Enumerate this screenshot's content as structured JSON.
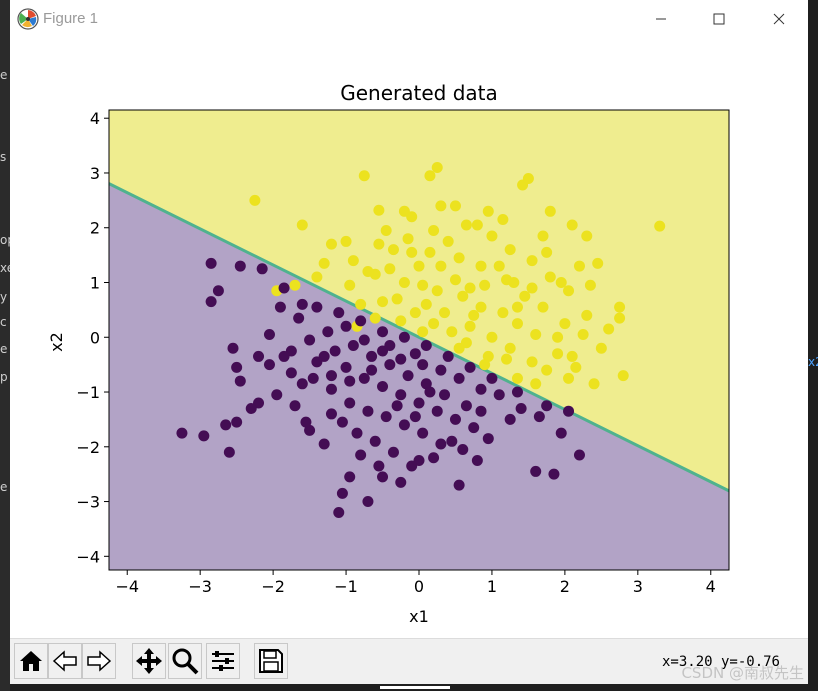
{
  "window": {
    "title": "Figure 1",
    "controls": [
      "minimize",
      "maximize",
      "close"
    ]
  },
  "chart_data": {
    "type": "scatter",
    "title": "Generated data",
    "xlabel": "x1",
    "ylabel": "x2",
    "xlim": [
      -4.25,
      4.25
    ],
    "ylim": [
      -4.25,
      4.15
    ],
    "xticks": [
      "−4",
      "−3",
      "−2",
      "−1",
      "0",
      "1",
      "2",
      "3",
      "4"
    ],
    "yticks": [
      "4",
      "3",
      "2",
      "1",
      "0",
      "−1",
      "−2",
      "−3",
      "−4"
    ],
    "xtick_values": [
      -4,
      -3,
      -2,
      -1,
      0,
      1,
      2,
      3,
      4
    ],
    "ytick_values": [
      4,
      3,
      2,
      1,
      0,
      -1,
      -2,
      -3,
      -4
    ],
    "decision_boundary": {
      "slope": -0.66,
      "intercept": 0.0
    },
    "regions": {
      "upper_color": "#efed8f",
      "lower_color": "#b2a3c6",
      "boundary_color": "#4fb28e"
    },
    "series": [
      {
        "class": 1,
        "color": "#ece21f",
        "points": [
          [
            -2.25,
            2.5
          ],
          [
            -1.6,
            2.05
          ],
          [
            -0.75,
            2.95
          ],
          [
            -0.55,
            2.32
          ],
          [
            0.15,
            2.95
          ],
          [
            0.25,
            3.1
          ],
          [
            1.42,
            2.78
          ],
          [
            1.5,
            2.9
          ],
          [
            1.8,
            2.3
          ],
          [
            3.3,
            2.03
          ],
          [
            2.1,
            2.05
          ],
          [
            2.3,
            1.85
          ],
          [
            0.8,
            2.05
          ],
          [
            -0.1,
            2.2
          ],
          [
            -0.35,
            1.6
          ],
          [
            -1.2,
            1.7
          ],
          [
            -0.9,
            1.4
          ],
          [
            -0.6,
            1.15
          ],
          [
            -0.2,
            1.0
          ],
          [
            0.05,
            0.95
          ],
          [
            0.3,
            1.3
          ],
          [
            0.5,
            1.05
          ],
          [
            0.6,
            0.75
          ],
          [
            0.85,
            0.55
          ],
          [
            1.15,
            0.45
          ],
          [
            1.35,
            0.25
          ],
          [
            1.6,
            0.05
          ],
          [
            1.9,
            -0.3
          ],
          [
            2.15,
            -0.55
          ],
          [
            2.5,
            -0.2
          ],
          [
            2.75,
            0.55
          ],
          [
            2.8,
            -0.7
          ],
          [
            2.3,
            0.4
          ],
          [
            2.05,
            0.85
          ],
          [
            1.8,
            1.1
          ],
          [
            1.55,
            1.4
          ],
          [
            1.25,
            1.6
          ],
          [
            1.0,
            1.85
          ],
          [
            0.65,
            2.05
          ],
          [
            0.4,
            1.75
          ],
          [
            0.15,
            1.55
          ],
          [
            -0.15,
            1.8
          ],
          [
            -0.45,
            1.95
          ],
          [
            -0.7,
            1.2
          ],
          [
            -0.95,
            0.95
          ],
          [
            -1.4,
            1.1
          ],
          [
            -1.7,
            0.95
          ],
          [
            -1.95,
            0.85
          ],
          [
            -0.3,
            0.7
          ],
          [
            0.1,
            0.6
          ],
          [
            0.35,
            0.45
          ],
          [
            0.7,
            0.2
          ],
          [
            1.0,
            0.0
          ],
          [
            1.25,
            -0.2
          ],
          [
            1.55,
            -0.45
          ],
          [
            1.75,
            -0.6
          ],
          [
            2.05,
            -0.75
          ],
          [
            2.4,
            -0.85
          ],
          [
            1.6,
            -0.85
          ],
          [
            1.35,
            -0.75
          ],
          [
            0.95,
            -0.35
          ],
          [
            0.65,
            -0.1
          ],
          [
            0.45,
            0.1
          ],
          [
            0.2,
            0.25
          ],
          [
            -0.05,
            0.45
          ],
          [
            -0.25,
            0.3
          ],
          [
            -0.5,
            0.65
          ],
          [
            -0.8,
            0.6
          ],
          [
            0.9,
            0.95
          ],
          [
            1.2,
            1.05
          ],
          [
            1.45,
            0.75
          ],
          [
            1.7,
            0.55
          ],
          [
            2.0,
            0.25
          ],
          [
            2.25,
            0.05
          ],
          [
            2.6,
            0.15
          ],
          [
            0.55,
            1.45
          ],
          [
            0.85,
            1.3
          ],
          [
            1.1,
            1.3
          ],
          [
            1.3,
            1.0
          ],
          [
            1.75,
            1.55
          ],
          [
            2.2,
            1.3
          ],
          [
            0.0,
            1.3
          ],
          [
            -0.4,
            1.25
          ],
          [
            -1.0,
            1.75
          ],
          [
            -0.2,
            2.3
          ],
          [
            0.3,
            2.4
          ],
          [
            0.95,
            2.3
          ],
          [
            1.15,
            2.15
          ],
          [
            1.7,
            1.85
          ],
          [
            2.45,
            1.35
          ],
          [
            -0.85,
            0.2
          ],
          [
            -0.6,
            0.35
          ],
          [
            0.05,
            0.1
          ],
          [
            0.55,
            -0.2
          ],
          [
            0.9,
            -0.5
          ],
          [
            1.2,
            -0.4
          ],
          [
            1.9,
            0.0
          ],
          [
            2.1,
            -0.35
          ],
          [
            0.75,
            0.4
          ],
          [
            1.35,
            0.55
          ],
          [
            1.55,
            0.9
          ],
          [
            2.35,
            0.95
          ],
          [
            2.75,
            0.35
          ],
          [
            1.95,
            1.0
          ],
          [
            0.25,
            0.85
          ],
          [
            0.7,
            0.9
          ],
          [
            -0.1,
            1.55
          ],
          [
            0.2,
            1.95
          ],
          [
            0.5,
            2.4
          ],
          [
            -0.55,
            1.7
          ],
          [
            -1.3,
            1.35
          ]
        ]
      },
      {
        "class": 0,
        "color": "#440d54",
        "points": [
          [
            -2.85,
            1.35
          ],
          [
            -2.85,
            0.65
          ],
          [
            -2.75,
            0.85
          ],
          [
            -2.45,
            1.3
          ],
          [
            -2.15,
            1.25
          ],
          [
            -1.85,
            0.9
          ],
          [
            -1.6,
            0.6
          ],
          [
            -2.05,
            0.05
          ],
          [
            -2.2,
            -0.35
          ],
          [
            -2.55,
            -0.2
          ],
          [
            -2.5,
            -0.55
          ],
          [
            -2.45,
            -0.8
          ],
          [
            -2.2,
            -1.2
          ],
          [
            -2.3,
            -1.3
          ],
          [
            -2.5,
            -1.55
          ],
          [
            -2.65,
            -1.6
          ],
          [
            -2.6,
            -2.1
          ],
          [
            -2.95,
            -1.8
          ],
          [
            -3.25,
            -1.75
          ],
          [
            -2.05,
            -0.5
          ],
          [
            -1.75,
            -0.65
          ],
          [
            -1.45,
            -0.75
          ],
          [
            -1.2,
            -0.95
          ],
          [
            -0.95,
            -1.2
          ],
          [
            -0.7,
            -1.35
          ],
          [
            -0.45,
            -1.45
          ],
          [
            -0.2,
            -1.6
          ],
          [
            0.05,
            -1.75
          ],
          [
            0.3,
            -1.95
          ],
          [
            0.6,
            -2.05
          ],
          [
            0.8,
            -2.25
          ],
          [
            0.55,
            -2.7
          ],
          [
            0.0,
            -2.25
          ],
          [
            -0.5,
            -2.55
          ],
          [
            -0.95,
            -2.55
          ],
          [
            -1.05,
            -2.85
          ],
          [
            -0.7,
            -3.0
          ],
          [
            -1.1,
            -3.2
          ],
          [
            -1.3,
            -1.95
          ],
          [
            -1.5,
            -1.7
          ],
          [
            -1.7,
            -1.25
          ],
          [
            -1.95,
            -1.05
          ],
          [
            -1.75,
            -0.25
          ],
          [
            -1.5,
            -0.05
          ],
          [
            -1.25,
            0.1
          ],
          [
            -1.0,
            0.2
          ],
          [
            -0.75,
            -0.05
          ],
          [
            -0.5,
            -0.25
          ],
          [
            -0.25,
            -0.4
          ],
          [
            0.05,
            -0.5
          ],
          [
            0.3,
            -0.6
          ],
          [
            0.55,
            -0.75
          ],
          [
            0.85,
            -0.95
          ],
          [
            1.1,
            -1.05
          ],
          [
            1.4,
            -1.3
          ],
          [
            1.65,
            -1.45
          ],
          [
            1.95,
            -1.75
          ],
          [
            1.6,
            -2.45
          ],
          [
            1.85,
            -2.5
          ],
          [
            2.2,
            -2.15
          ],
          [
            2.05,
            -1.35
          ],
          [
            1.75,
            -1.25
          ],
          [
            1.35,
            -1.0
          ],
          [
            1.0,
            -0.75
          ],
          [
            0.7,
            -0.55
          ],
          [
            0.4,
            -0.35
          ],
          [
            0.1,
            -0.15
          ],
          [
            -0.2,
            0.0
          ],
          [
            -0.5,
            0.1
          ],
          [
            -0.8,
            0.3
          ],
          [
            -1.1,
            0.45
          ],
          [
            -1.4,
            0.55
          ],
          [
            -1.65,
            0.35
          ],
          [
            -1.9,
            0.55
          ],
          [
            -1.3,
            -0.35
          ],
          [
            -1.0,
            -0.55
          ],
          [
            -0.75,
            -0.75
          ],
          [
            -0.5,
            -0.9
          ],
          [
            -0.25,
            -1.05
          ],
          [
            0.0,
            -1.2
          ],
          [
            0.25,
            -1.35
          ],
          [
            0.5,
            -1.5
          ],
          [
            0.75,
            -1.65
          ],
          [
            0.95,
            -1.85
          ],
          [
            0.65,
            -1.25
          ],
          [
            0.35,
            -1.05
          ],
          [
            0.1,
            -0.85
          ],
          [
            -0.15,
            -0.7
          ],
          [
            -0.4,
            -0.5
          ],
          [
            -0.65,
            -0.35
          ],
          [
            -0.9,
            -0.15
          ],
          [
            -1.15,
            -0.25
          ],
          [
            -1.4,
            -0.45
          ],
          [
            -1.6,
            -0.85
          ],
          [
            -1.85,
            -0.35
          ],
          [
            -1.05,
            -1.55
          ],
          [
            -0.85,
            -1.75
          ],
          [
            -0.6,
            -1.9
          ],
          [
            -0.35,
            -2.1
          ],
          [
            -0.1,
            -2.35
          ],
          [
            0.2,
            -2.2
          ],
          [
            -0.25,
            -2.65
          ],
          [
            -0.55,
            -2.35
          ],
          [
            -0.8,
            -2.15
          ],
          [
            -1.2,
            -1.4
          ],
          [
            -1.55,
            -1.55
          ],
          [
            0.45,
            -1.9
          ],
          [
            -0.05,
            -1.45
          ],
          [
            -0.3,
            -1.25
          ],
          [
            0.15,
            -1.0
          ],
          [
            0.85,
            -1.35
          ],
          [
            1.25,
            -1.5
          ],
          [
            -0.65,
            -0.6
          ],
          [
            -0.95,
            -0.8
          ],
          [
            -1.2,
            -0.7
          ],
          [
            -0.4,
            -0.15
          ],
          [
            -0.05,
            -0.3
          ]
        ]
      }
    ]
  },
  "toolbar": {
    "buttons": [
      "home",
      "back",
      "forward",
      "pan",
      "zoom",
      "configure-subplots",
      "save"
    ],
    "coordinates": "x=3.20 y=-0.76"
  },
  "watermark": "CSDN @南叔先生",
  "left_edge_glyphs": [
    "e",
    "s",
    "op",
    "xe",
    "y",
    "c",
    "e",
    "p",
    "e"
  ],
  "right_edge_glyph": "x2"
}
